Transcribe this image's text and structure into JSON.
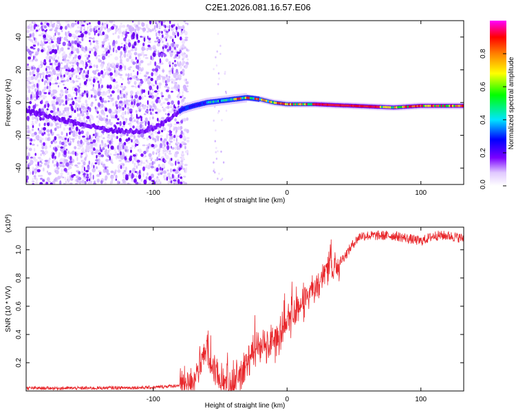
{
  "title": "C2E1.2026.081.16.57.E06",
  "chart_data": [
    {
      "type": "heatmap",
      "name": "spectrogram",
      "xlabel": "Height of straight line (km)",
      "ylabel": "Frequency (Hz)",
      "xlim": [
        -195,
        132
      ],
      "ylim": [
        -50,
        50
      ],
      "xticks": [
        -100,
        0,
        100
      ],
      "xtick_labels": [
        "-100",
        "0",
        "100"
      ],
      "yticks": [
        -40,
        -20,
        0,
        20,
        40
      ],
      "ytick_labels": [
        "-40",
        "-20",
        "0",
        "20",
        "40"
      ],
      "colorbar": {
        "label": "Normalized spectral amplitude",
        "range": [
          0,
          1
        ],
        "ticks": [
          0,
          0.2,
          0.4,
          0.6,
          0.8
        ],
        "tick_labels": [
          "0.0",
          "0.2",
          "0.4",
          "0.6",
          "0.8"
        ],
        "colors": [
          "#ffffff",
          "#d9c0ff",
          "#7a00ff",
          "#0000ff",
          "#00ffff",
          "#00ff00",
          "#ffff00",
          "#ff8000",
          "#ff0000",
          "#ff00ff"
        ]
      },
      "ridge": {
        "x": [
          -195,
          -170,
          -150,
          -130,
          -110,
          -95,
          -85,
          -78,
          -70,
          -60,
          -50,
          -40,
          -30,
          -20,
          -10,
          0,
          20,
          50,
          80,
          100,
          132
        ],
        "y": [
          -5,
          -10,
          -14,
          -17,
          -18,
          -14,
          -8,
          -4,
          -2,
          0,
          1,
          2,
          3,
          2,
          0,
          -1,
          -1,
          -2,
          -3,
          -2,
          -2
        ]
      },
      "scatter_region": {
        "x": [
          -195,
          -78
        ],
        "y": [
          -50,
          50
        ]
      }
    },
    {
      "type": "line",
      "name": "snr",
      "xlabel": "Height of straight line (km)",
      "ylabel": "SNR (10 * V/V)",
      "multiplier": "(x10^4)",
      "multiplier_base": "(x10",
      "multiplier_exp": "4",
      "multiplier_close": ")",
      "xlim": [
        -195,
        132
      ],
      "ylim": [
        0,
        1.16
      ],
      "xticks": [
        -100,
        0,
        100
      ],
      "xtick_labels": [
        "-100",
        "0",
        "100"
      ],
      "yticks": [
        0.2,
        0.4,
        0.6,
        0.8,
        1.0
      ],
      "ytick_labels": [
        "0.2",
        "0.4",
        "0.6",
        "0.8",
        "1.0"
      ],
      "color": "#e8262a",
      "series": [
        {
          "name": "SNR",
          "x": [
            -195,
            -150,
            -100,
            -80,
            -70,
            -65,
            -60,
            -55,
            -50,
            -45,
            -40,
            -35,
            -30,
            -25,
            -20,
            -15,
            -10,
            -5,
            0,
            5,
            10,
            15,
            20,
            25,
            30,
            35,
            40,
            45,
            50,
            55,
            60,
            70,
            80,
            90,
            100,
            110,
            120,
            132
          ],
          "y": [
            0.02,
            0.02,
            0.025,
            0.04,
            0.08,
            0.18,
            0.28,
            0.15,
            0.08,
            0.06,
            0.05,
            0.12,
            0.22,
            0.3,
            0.32,
            0.33,
            0.35,
            0.42,
            0.48,
            0.55,
            0.62,
            0.68,
            0.72,
            0.78,
            0.85,
            0.88,
            0.92,
            0.98,
            1.05,
            1.1,
            1.1,
            1.1,
            1.1,
            1.08,
            1.06,
            1.1,
            1.1,
            1.08
          ]
        }
      ]
    }
  ]
}
